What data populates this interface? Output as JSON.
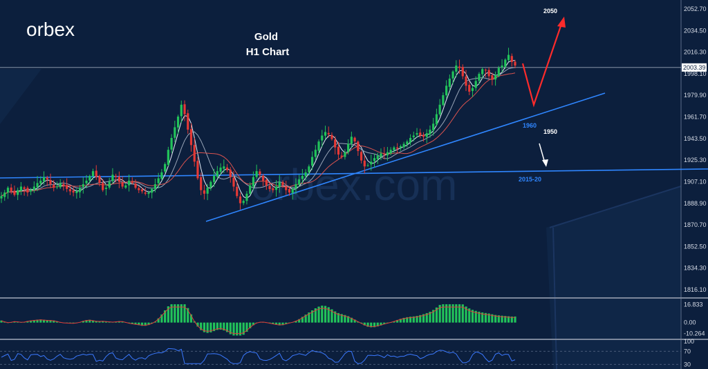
{
  "brand": {
    "logo": "orbex",
    "watermark": "orbex.com"
  },
  "title": {
    "line1": "Gold",
    "line2": "H1 Chart"
  },
  "chart_data": {
    "type": "candlestick",
    "instrument": "Gold",
    "timeframe": "H1",
    "price_axis": {
      "ticks": [
        "2052.70",
        "2034.50",
        "2016.30",
        "1998.10",
        "1979.90",
        "1961.70",
        "1943.50",
        "1925.30",
        "1907.10",
        "1888.90",
        "1870.70",
        "1852.50",
        "1834.30",
        "1816.10"
      ],
      "current_price": "2003.39",
      "ylim": [
        1806,
        2062
      ]
    },
    "candles": [
      1895,
      1898,
      1902,
      1899,
      1896,
      1900,
      1903,
      1901,
      1898,
      1900,
      1903,
      1906,
      1908,
      1911,
      1909,
      1905,
      1902,
      1903,
      1906,
      1904,
      1901,
      1899,
      1898,
      1899,
      1902,
      1905,
      1908,
      1912,
      1916,
      1911,
      1906,
      1900,
      1902,
      1907,
      1913,
      1911,
      1907,
      1903,
      1904,
      1908,
      1906,
      1902,
      1900,
      1899,
      1897,
      1898,
      1901,
      1905,
      1910,
      1915,
      1922,
      1934,
      1944,
      1953,
      1962,
      1972,
      1964,
      1951,
      1938,
      1924,
      1910,
      1900,
      1897,
      1902,
      1907,
      1912,
      1916,
      1919,
      1920,
      1917,
      1911,
      1903,
      1895,
      1889,
      1891,
      1897,
      1904,
      1911,
      1916,
      1913,
      1908,
      1904,
      1901,
      1900,
      1903,
      1907,
      1904,
      1900,
      1898,
      1901,
      1905,
      1909,
      1912,
      1915,
      1920,
      1928,
      1934,
      1941,
      1946,
      1949,
      1947,
      1943,
      1936,
      1930,
      1928,
      1932,
      1939,
      1945,
      1941,
      1933,
      1925,
      1920,
      1921,
      1924,
      1927,
      1929,
      1931,
      1930,
      1932,
      1934,
      1936,
      1935,
      1937,
      1939,
      1941,
      1944,
      1946,
      1948,
      1946,
      1945,
      1948,
      1951,
      1956,
      1964,
      1972,
      1980,
      1988,
      1994,
      2000,
      2005,
      2003,
      1996,
      1988,
      1983,
      1986,
      1992,
      1998,
      2002,
      2001,
      1996,
      1993,
      1997,
      2003,
      2005,
      2010,
      2014,
      2008,
      2005
    ],
    "moving_averages": 3,
    "trendlines": [
      {
        "label": "1960",
        "color": "#2f86ff"
      },
      {
        "label": "2015-20",
        "color": "#2f86ff"
      }
    ],
    "annotations": [
      {
        "text": "2050",
        "color": "#ffffff"
      },
      {
        "text": "1950",
        "color": "#ffffff"
      }
    ],
    "projection_color": "#ff2b2b",
    "macd": {
      "ticks": [
        "16.833",
        "0.00",
        "-10.264"
      ],
      "ylim": [
        -13,
        19
      ],
      "bar_color": "#22c35a",
      "signal_color": "#e03a3a"
    },
    "rsi": {
      "ticks": [
        "100",
        "70",
        "30"
      ],
      "ylim": [
        20,
        100
      ],
      "line_color": "#3b79ff"
    }
  },
  "colors": {
    "background": "#0c1f3d",
    "bull_candle": "#22c35a",
    "bear_candle": "#e53935",
    "axis_text": "#d6dbe6",
    "trendline": "#2f86ff"
  }
}
